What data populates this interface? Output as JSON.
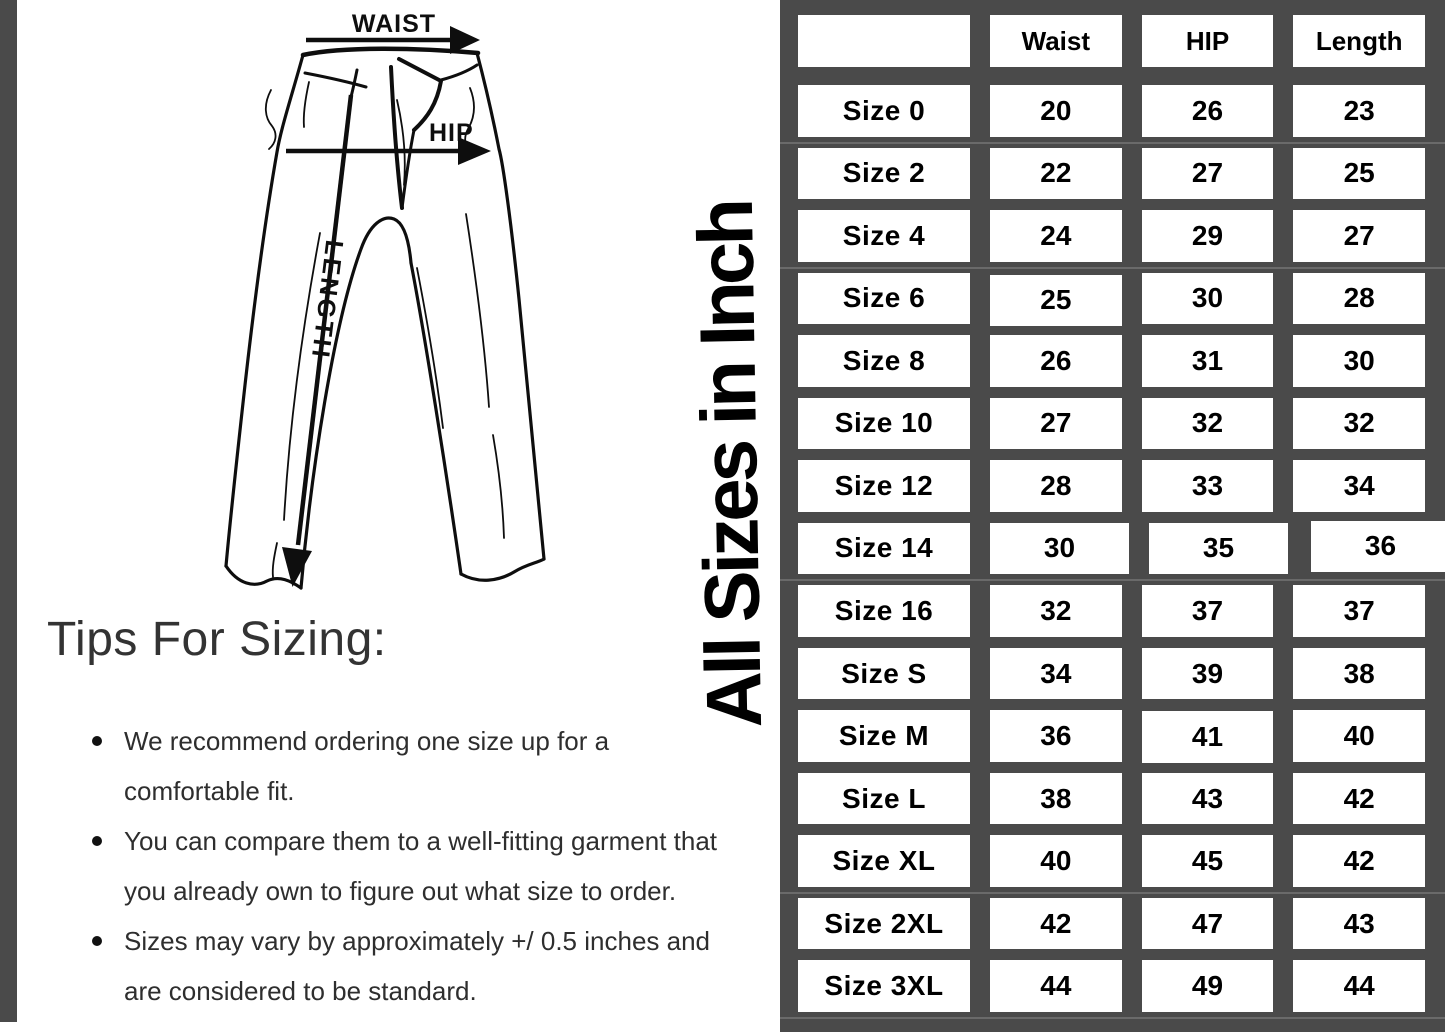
{
  "colors": {
    "table_background": "#4a4a4a",
    "cell_background": "#ffffff",
    "text": "#000000",
    "heading_text": "#333333",
    "body_text": "#2e2e2e",
    "side_strip": "#4a4a4a"
  },
  "diagram": {
    "waist_label": "WAIST",
    "hip_label": "HIP",
    "length_label": "LENGTH"
  },
  "tips": {
    "heading": "Tips For Sizing:",
    "bullets": [
      "We recommend ordering one size up for a\ncomfortable fit.",
      "You can compare them to a well-fitting garment that\nyou already own to figure out what size to order.",
      "Sizes may vary by approximately +/ 0.5 inches and\nare considered to be standard."
    ]
  },
  "size_table": {
    "vertical_title": "All Sizes in Inch",
    "columns": [
      "Waist",
      "HIP",
      "Length"
    ],
    "rows": [
      {
        "size": "Size 0",
        "waist": "20",
        "hip": "26",
        "length": "23"
      },
      {
        "size": "Size 2",
        "waist": "22",
        "hip": "27",
        "length": "25"
      },
      {
        "size": "Size 4",
        "waist": "24",
        "hip": "29",
        "length": "27"
      },
      {
        "size": "Size 6",
        "waist": "25",
        "hip": "30",
        "length": "28"
      },
      {
        "size": "Size 8",
        "waist": "26",
        "hip": "31",
        "length": "30"
      },
      {
        "size": "Size 10",
        "waist": "27",
        "hip": "32",
        "length": "32"
      },
      {
        "size": "Size 12",
        "waist": "28",
        "hip": "33",
        "length": "34"
      },
      {
        "size": "Size 14",
        "waist": "30",
        "hip": "35",
        "length": "36"
      },
      {
        "size": "Size 16",
        "waist": "32",
        "hip": "37",
        "length": "37"
      },
      {
        "size": "Size S",
        "waist": "34",
        "hip": "39",
        "length": "38"
      },
      {
        "size": "Size M",
        "waist": "36",
        "hip": "41",
        "length": "40"
      },
      {
        "size": "Size L",
        "waist": "38",
        "hip": "43",
        "length": "42"
      },
      {
        "size": "Size XL",
        "waist": "40",
        "hip": "45",
        "length": "42"
      },
      {
        "size": "Size 2XL",
        "waist": "42",
        "hip": "47",
        "length": "43"
      },
      {
        "size": "Size 3XL",
        "waist": "44",
        "hip": "49",
        "length": "44"
      }
    ]
  }
}
